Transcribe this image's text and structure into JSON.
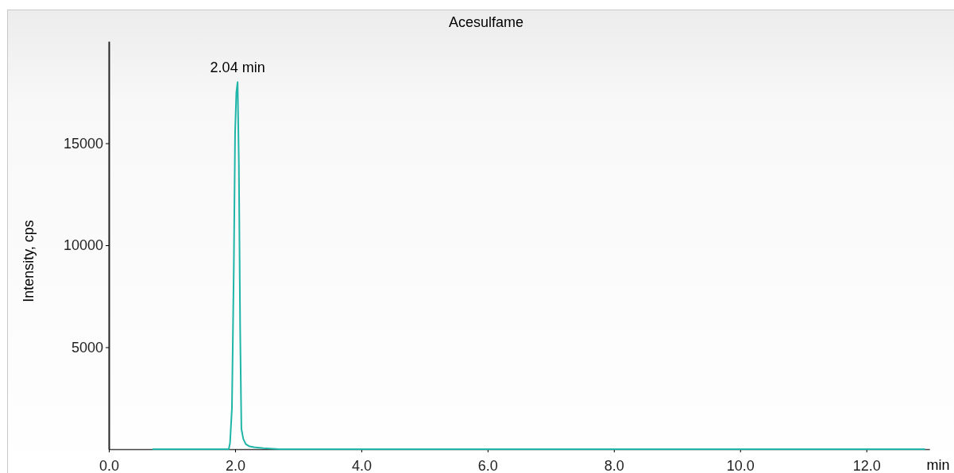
{
  "chart_data": {
    "type": "line",
    "title": "Acesulfame",
    "xlabel": "min",
    "ylabel": "Intensity, cps",
    "xlim": [
      0,
      13
    ],
    "xticks": [
      {
        "value": 0,
        "label": "0.0"
      },
      {
        "value": 2,
        "label": "2.0"
      },
      {
        "value": 4,
        "label": "4.0"
      },
      {
        "value": 6,
        "label": "6.0"
      },
      {
        "value": 8,
        "label": "8.0"
      },
      {
        "value": 10,
        "label": "10.0"
      },
      {
        "value": 12,
        "label": "12.0"
      }
    ],
    "ylim": [
      0,
      20000
    ],
    "yticks": [
      5000,
      10000,
      15000
    ],
    "series": [
      {
        "color": "#1fb5a8",
        "x": [
          0.69,
          1.9,
          1.92,
          1.95,
          1.98,
          2.0,
          2.02,
          2.04,
          2.06,
          2.08,
          2.1,
          2.13,
          2.17,
          2.22,
          2.3,
          2.45,
          2.7,
          12.93
        ],
        "values": [
          0,
          0,
          300,
          2000,
          9000,
          15500,
          17500,
          18000,
          14000,
          6000,
          1000,
          500,
          250,
          150,
          100,
          50,
          0,
          0
        ]
      }
    ],
    "annotations": [
      {
        "text": "2.04 min",
        "x": 2.04,
        "y": 18000
      }
    ],
    "grid": false,
    "marker": "none",
    "line_style": "solid"
  }
}
